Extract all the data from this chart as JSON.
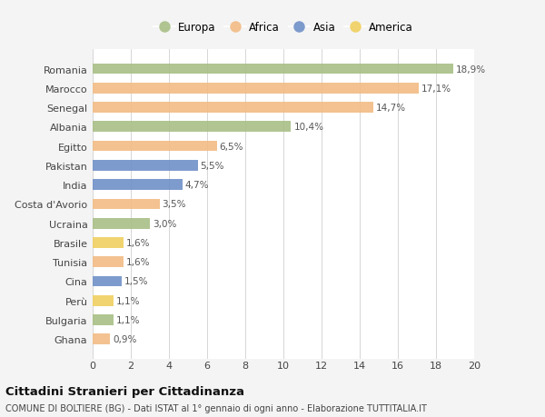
{
  "countries": [
    "Romania",
    "Marocco",
    "Senegal",
    "Albania",
    "Egitto",
    "Pakistan",
    "India",
    "Costa d'Avorio",
    "Ucraina",
    "Brasile",
    "Tunisia",
    "Cina",
    "Perù",
    "Bulgaria",
    "Ghana"
  ],
  "values": [
    18.9,
    17.1,
    14.7,
    10.4,
    6.5,
    5.5,
    4.7,
    3.5,
    3.0,
    1.6,
    1.6,
    1.5,
    1.1,
    1.1,
    0.9
  ],
  "labels": [
    "18,9%",
    "17,1%",
    "14,7%",
    "10,4%",
    "6,5%",
    "5,5%",
    "4,7%",
    "3,5%",
    "3,0%",
    "1,6%",
    "1,6%",
    "1,5%",
    "1,1%",
    "1,1%",
    "0,9%"
  ],
  "continents": [
    "Europa",
    "Africa",
    "Africa",
    "Europa",
    "Africa",
    "Asia",
    "Asia",
    "Africa",
    "Europa",
    "America",
    "Africa",
    "Asia",
    "America",
    "Europa",
    "Africa"
  ],
  "colors": {
    "Europa": "#a8bf85",
    "Africa": "#f2bc84",
    "Asia": "#7090c8",
    "America": "#f0d060"
  },
  "legend_order": [
    "Europa",
    "Africa",
    "Asia",
    "America"
  ],
  "title": "Cittadini Stranieri per Cittadinanza",
  "subtitle": "COMUNE DI BOLTIERE (BG) - Dati ISTAT al 1° gennaio di ogni anno - Elaborazione TUTTITALIA.IT",
  "xlim": [
    0,
    20
  ],
  "xticks": [
    0,
    2,
    4,
    6,
    8,
    10,
    12,
    14,
    16,
    18,
    20
  ],
  "background_color": "#f4f4f4",
  "bar_background": "#ffffff"
}
